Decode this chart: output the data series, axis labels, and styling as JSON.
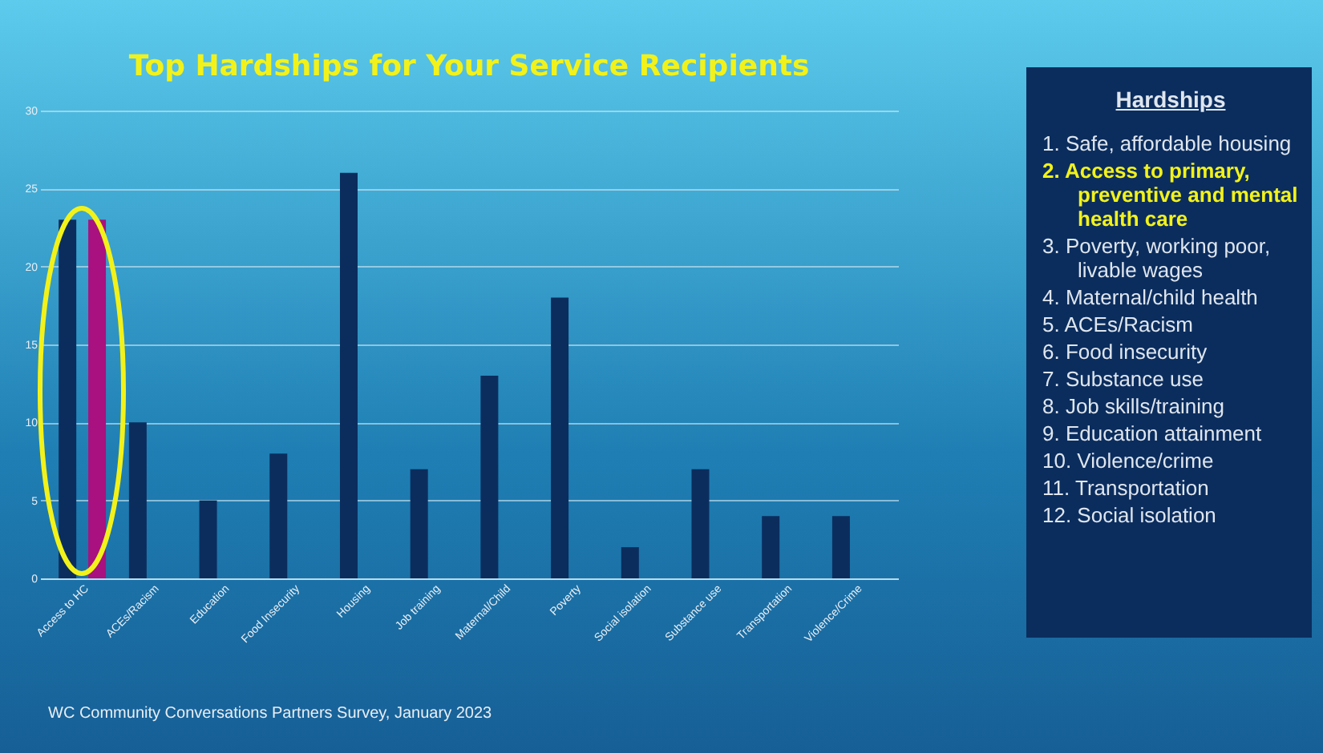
{
  "chart_data": {
    "type": "bar",
    "title": "Top Hardships for Your Service Recipients",
    "categories": [
      "Access to HC",
      "ACEs/Racism",
      "Education",
      "Food Insecurity",
      "Housing",
      "Job training",
      "Maternal/Child",
      "Poverty",
      "Social isolation",
      "Substance use",
      "Transportation",
      "Violence/Crime"
    ],
    "series": [
      {
        "color": "#0b2d5e",
        "values": [
          23,
          10,
          5,
          8,
          26,
          7,
          13,
          18,
          2,
          7,
          4,
          4
        ]
      },
      {
        "color": "#a8117f",
        "values": [
          23,
          null,
          null,
          null,
          null,
          null,
          null,
          null,
          null,
          null,
          null,
          null
        ]
      }
    ],
    "ylim": [
      0,
      30
    ],
    "yticks": [
      0,
      5,
      10,
      15,
      20,
      25,
      30
    ],
    "grid": "y",
    "legend": false,
    "annotations": [
      "Hardships",
      "1. Safe, affordable housing",
      "2. Access to primary, preventive and mental health care",
      "3. Poverty, working poor, livable wages",
      "4. Maternal/child health",
      "5. ACEs/Racism",
      "6. Food insecurity",
      "7. Substance use",
      "8. Job skills/training",
      "9. Education attainment",
      "10. Violence/crime",
      "11. Transportation",
      "12. Social isolation",
      "WC Community Conversations Partners Survey, January 2023"
    ]
  }
}
